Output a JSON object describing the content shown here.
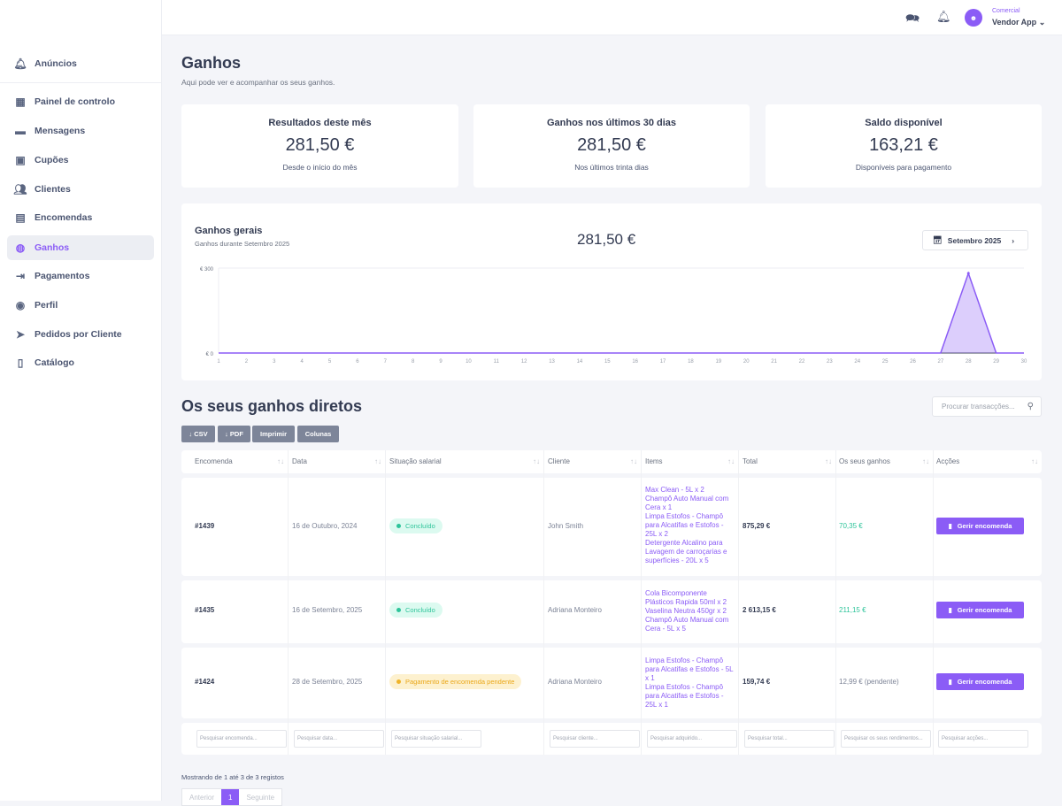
{
  "sidebar": {
    "items": [
      {
        "label": "Anúncios",
        "icon": "bell-icon"
      },
      {
        "label": "Painel de controlo",
        "icon": "dashboard-icon"
      },
      {
        "label": "Mensagens",
        "icon": "message-icon"
      },
      {
        "label": "Cupões",
        "icon": "coupon-icon"
      },
      {
        "label": "Clientes",
        "icon": "users-icon"
      },
      {
        "label": "Encomendas",
        "icon": "orders-icon"
      },
      {
        "label": "Ganhos",
        "icon": "coins-icon"
      },
      {
        "label": "Pagamentos",
        "icon": "payment-icon"
      },
      {
        "label": "Perfil",
        "icon": "profile-icon"
      },
      {
        "label": "Pedidos por Cliente",
        "icon": "send-icon"
      },
      {
        "label": "Catálogo",
        "icon": "book-icon"
      }
    ],
    "active": "Ganhos"
  },
  "header": {
    "role": "Comercial",
    "user": "Vendor App"
  },
  "page": {
    "title": "Ganhos",
    "subtitle": "Aqui pode ver e acompanhar os seus ganhos."
  },
  "stats": [
    {
      "title": "Resultados deste mês",
      "value": "281,50 €",
      "sub": "Desde o início do mês"
    },
    {
      "title": "Ganhos nos últimos 30 dias",
      "value": "281,50 €",
      "sub": "Nos últimos trinta dias"
    },
    {
      "title": "Saldo disponível",
      "value": "163,21 €",
      "sub": "Disponíveis para pagamento"
    }
  ],
  "overview": {
    "title": "Ganhos gerais",
    "subtitle": "Ganhos durante Setembro 2025",
    "total": "281,50 €",
    "month": "Setembro 2025"
  },
  "chart_data": {
    "type": "area",
    "x": [
      1,
      2,
      3,
      4,
      5,
      6,
      7,
      8,
      9,
      10,
      11,
      12,
      13,
      14,
      15,
      16,
      17,
      18,
      19,
      20,
      21,
      22,
      23,
      24,
      25,
      26,
      27,
      28,
      29,
      30
    ],
    "values": [
      0,
      0,
      0,
      0,
      0,
      0,
      0,
      0,
      0,
      0,
      0,
      0,
      0,
      0,
      0,
      0,
      0,
      0,
      0,
      0,
      0,
      0,
      0,
      0,
      0,
      0,
      0,
      281.5,
      0,
      0
    ],
    "yticks": [
      "€ 0",
      "€ 300"
    ],
    "ylim": [
      0,
      300
    ],
    "color": "#8b5cf6"
  },
  "direct": {
    "title": "Os seus ganhos diretos",
    "search_placeholder": "Procurar transacções...",
    "buttons": [
      "↓ CSV",
      "↓ PDF",
      "Imprimir",
      "Colunas"
    ],
    "columns": [
      "Encomenda",
      "Data",
      "Situação salarial",
      "Cliente",
      "Items",
      "Total",
      "Os seus ganhos",
      "Acções"
    ],
    "rows": [
      {
        "order": "#1439",
        "date": "16 de Outubro, 2024",
        "status": "Concluído",
        "client": "John Smith",
        "items": [
          "Max Clean - 5L x 2",
          "Champô Auto Manual com Cera x 1",
          "Limpa Estofos - Champô para Alcatifas e Estofos - 25L x 2",
          "Detergente Alcalino para Lavagem de carroçarias e superfícies - 20L x 5"
        ],
        "total": "875,29 €",
        "earn": "70,35 €",
        "action": "Gerir encomenda"
      },
      {
        "order": "#1435",
        "date": "16 de Setembro, 2025",
        "status": "Concluído",
        "client": "Adriana Monteiro",
        "items": [
          "Cola Bicomponente Plásticos Rapida 50ml x 2",
          "Vaselina Neutra 450gr x 2",
          "Champô Auto Manual com Cera - 5L x 5"
        ],
        "total": "2 613,15 €",
        "earn": "211,15 €",
        "action": "Gerir encomenda"
      },
      {
        "order": "#1424",
        "date": "28 de Setembro, 2025",
        "status": "Pagamento de encomenda pendente",
        "client": "Adriana Monteiro",
        "items": [
          "Limpa Estofos - Champô para Alcatifas e Estofos - 5L x 1",
          "Limpa Estofos - Champô para Alcatifas e Estofos - 25L x 1"
        ],
        "total": "159,74 €",
        "earn": "12,99 € (pendente)",
        "action": "Gerir encomenda"
      }
    ],
    "filters": [
      "Pesquisar encomenda...",
      "Pesquisar data...",
      "Pesquisar situação salarial...",
      "Pesquisar cliente...",
      "Pesquisar adquirido...",
      "Pesquisar total...",
      "Pesquisar os seus rendimentos...",
      "Pesquisar acções..."
    ],
    "info": "Mostrando de 1 até 3 de 3 registos",
    "pager": {
      "prev": "Anterior",
      "page": "1",
      "next": "Seguinte"
    }
  }
}
